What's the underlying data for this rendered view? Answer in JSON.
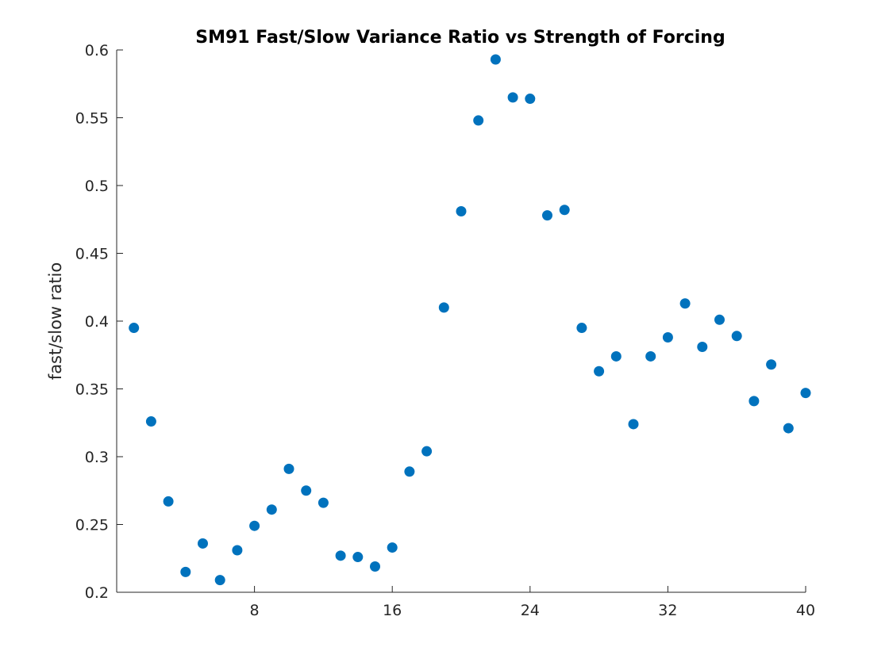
{
  "chart_data": {
    "type": "scatter",
    "title": "SM91 Fast/Slow Variance Ratio vs Strength of Forcing",
    "xlabel": "",
    "ylabel": "fast/slow ratio",
    "xlim": [
      0,
      40
    ],
    "ylim": [
      0.2,
      0.6
    ],
    "xticks": [
      8,
      16,
      24,
      32,
      40
    ],
    "yticks": [
      0.2,
      0.25,
      0.3,
      0.35,
      0.4,
      0.45,
      0.5,
      0.55,
      0.6
    ],
    "ytick_labels": [
      "0.2",
      "0.25",
      "0.3",
      "0.35",
      "0.4",
      "0.45",
      "0.5",
      "0.55",
      "0.6"
    ],
    "grid": false,
    "marker_color": "#0072BD",
    "x": [
      1,
      2,
      3,
      4,
      5,
      6,
      7,
      8,
      9,
      10,
      11,
      12,
      13,
      14,
      15,
      16,
      17,
      18,
      19,
      20,
      21,
      22,
      23,
      24,
      25,
      26,
      27,
      28,
      29,
      30,
      31,
      32,
      33,
      34,
      35,
      36,
      37,
      38,
      39,
      40
    ],
    "y": [
      0.395,
      0.326,
      0.267,
      0.215,
      0.236,
      0.209,
      0.231,
      0.249,
      0.261,
      0.291,
      0.275,
      0.266,
      0.227,
      0.226,
      0.219,
      0.233,
      0.289,
      0.304,
      0.41,
      0.481,
      0.548,
      0.593,
      0.565,
      0.564,
      0.478,
      0.482,
      0.395,
      0.363,
      0.374,
      0.324,
      0.374,
      0.388,
      0.413,
      0.381,
      0.401,
      0.389,
      0.341,
      0.368,
      0.321,
      0.347
    ]
  }
}
